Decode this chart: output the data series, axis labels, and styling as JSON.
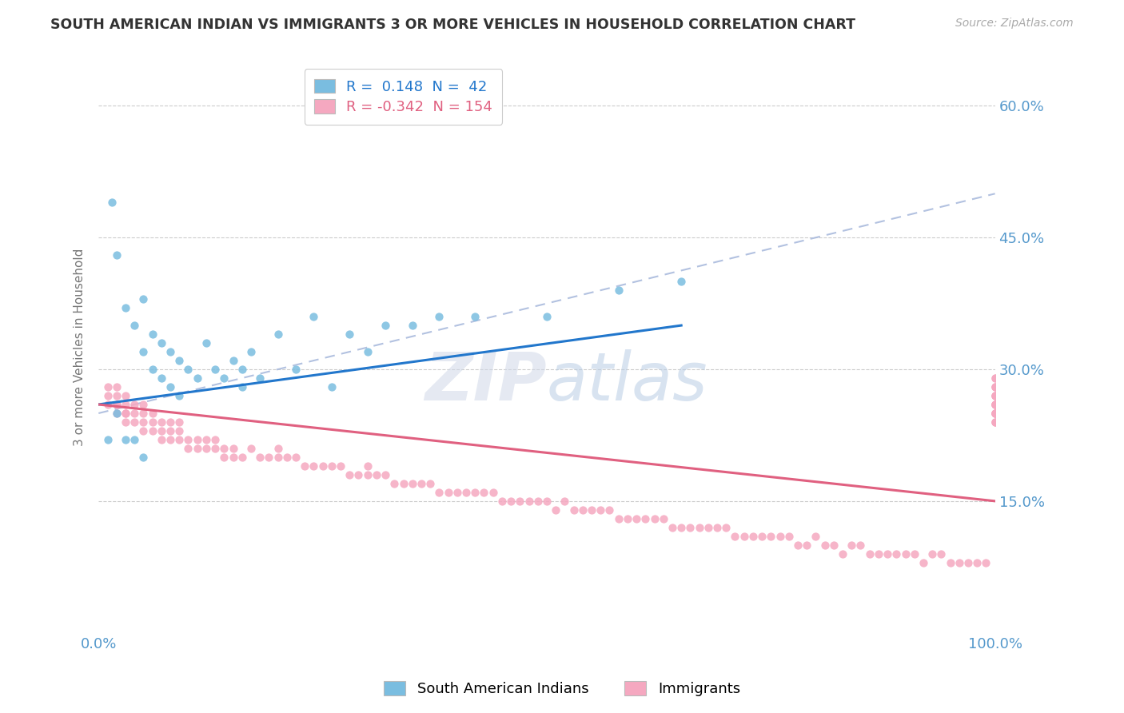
{
  "title": "SOUTH AMERICAN INDIAN VS IMMIGRANTS 3 OR MORE VEHICLES IN HOUSEHOLD CORRELATION CHART",
  "source": "Source: ZipAtlas.com",
  "ylabel": "3 or more Vehicles in Household",
  "xlim": [
    0,
    100
  ],
  "ylim": [
    0,
    65
  ],
  "blue_color": "#7abde0",
  "pink_color": "#f5a8c0",
  "blue_line_color": "#2277cc",
  "pink_line_color": "#e06080",
  "dash_line_color": "#aabbdd",
  "grid_color": "#cccccc",
  "tick_color": "#5599cc",
  "title_color": "#333333",
  "source_color": "#aaaaaa",
  "axis_label_color": "#777777",
  "background_color": "#ffffff",
  "watermark_color": "#dddddd",
  "legend_box_color": "#dddddd",
  "blue_N": 42,
  "pink_N": 154,
  "blue_R": 0.148,
  "pink_R": -0.342,
  "blue_x": [
    1.5,
    2,
    3,
    4,
    5,
    5,
    6,
    6,
    7,
    7,
    8,
    8,
    9,
    9,
    10,
    11,
    12,
    13,
    14,
    15,
    16,
    16,
    17,
    18,
    20,
    22,
    24,
    26,
    28,
    30,
    32,
    35,
    38,
    42,
    50,
    58,
    65,
    1,
    2,
    3,
    4,
    5
  ],
  "blue_y": [
    49,
    43,
    37,
    35,
    32,
    38,
    30,
    34,
    29,
    33,
    28,
    32,
    27,
    31,
    30,
    29,
    33,
    30,
    29,
    31,
    30,
    28,
    32,
    29,
    34,
    30,
    36,
    28,
    34,
    32,
    35,
    35,
    36,
    36,
    36,
    39,
    40,
    22,
    25,
    22,
    22,
    20
  ],
  "pink_x": [
    1,
    1,
    1,
    2,
    2,
    2,
    2,
    2,
    3,
    3,
    3,
    3,
    3,
    4,
    4,
    4,
    5,
    5,
    5,
    5,
    6,
    6,
    6,
    7,
    7,
    7,
    8,
    8,
    8,
    9,
    9,
    9,
    10,
    10,
    11,
    11,
    12,
    12,
    13,
    13,
    14,
    14,
    15,
    15,
    16,
    17,
    18,
    19,
    20,
    20,
    21,
    22,
    23,
    24,
    25,
    26,
    27,
    28,
    29,
    30,
    30,
    31,
    32,
    33,
    34,
    35,
    36,
    37,
    38,
    39,
    40,
    41,
    42,
    43,
    44,
    45,
    46,
    47,
    48,
    49,
    50,
    51,
    52,
    53,
    54,
    55,
    56,
    57,
    58,
    59,
    60,
    61,
    62,
    63,
    64,
    65,
    66,
    67,
    68,
    69,
    70,
    71,
    72,
    73,
    74,
    75,
    76,
    77,
    78,
    79,
    80,
    81,
    82,
    83,
    84,
    85,
    86,
    87,
    88,
    89,
    90,
    91,
    92,
    93,
    94,
    95,
    96,
    97,
    98,
    99,
    100,
    100,
    100,
    100,
    100,
    100,
    100,
    100,
    100,
    100,
    100,
    100,
    100,
    100,
    100,
    100,
    100,
    100,
    100,
    100,
    100,
    100,
    100,
    100
  ],
  "pink_y": [
    26,
    27,
    28,
    25,
    26,
    27,
    28,
    26,
    24,
    25,
    26,
    27,
    25,
    24,
    25,
    26,
    23,
    24,
    25,
    26,
    23,
    24,
    25,
    22,
    23,
    24,
    22,
    23,
    24,
    22,
    23,
    24,
    21,
    22,
    21,
    22,
    21,
    22,
    21,
    22,
    20,
    21,
    20,
    21,
    20,
    21,
    20,
    20,
    20,
    21,
    20,
    20,
    19,
    19,
    19,
    19,
    19,
    18,
    18,
    18,
    19,
    18,
    18,
    17,
    17,
    17,
    17,
    17,
    16,
    16,
    16,
    16,
    16,
    16,
    16,
    15,
    15,
    15,
    15,
    15,
    15,
    14,
    15,
    14,
    14,
    14,
    14,
    14,
    13,
    13,
    13,
    13,
    13,
    13,
    12,
    12,
    12,
    12,
    12,
    12,
    12,
    11,
    11,
    11,
    11,
    11,
    11,
    11,
    10,
    10,
    11,
    10,
    10,
    9,
    10,
    10,
    9,
    9,
    9,
    9,
    9,
    9,
    8,
    9,
    9,
    8,
    8,
    8,
    8,
    8,
    27,
    28,
    29,
    26,
    27,
    28,
    29,
    25,
    26,
    27,
    28,
    26,
    25,
    26,
    27,
    25,
    24,
    25,
    26,
    25,
    24,
    25,
    26,
    24
  ],
  "blue_reg_x0": 0,
  "blue_reg_y0": 26,
  "blue_reg_x1": 65,
  "blue_reg_y1": 35,
  "pink_reg_x0": 0,
  "pink_reg_y0": 26,
  "pink_reg_x1": 100,
  "pink_reg_y1": 15,
  "dash_x0": 0,
  "dash_y0": 25,
  "dash_x1": 100,
  "dash_y1": 50
}
